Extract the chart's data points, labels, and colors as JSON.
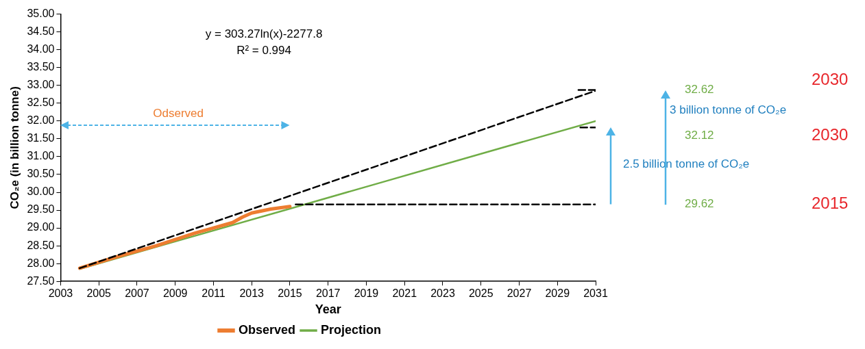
{
  "chart_data": {
    "type": "line",
    "xlabel": "Year",
    "ylabel": "CO₂e (in billion tonne)",
    "xlim": [
      2003,
      2031
    ],
    "xticks": [
      2003,
      2005,
      2007,
      2009,
      2011,
      2013,
      2015,
      2017,
      2019,
      2021,
      2023,
      2025,
      2027,
      2029,
      2031
    ],
    "ylim": [
      27.5,
      35
    ],
    "yticks": [
      {
        "value": 27.5,
        "label": "27.50"
      },
      {
        "value": 28,
        "label": "28.00"
      },
      {
        "value": 28.5,
        "label": "28.50"
      },
      {
        "value": 29,
        "label": "29.00"
      },
      {
        "value": 29.5,
        "label": "29.50"
      },
      {
        "value": 30,
        "label": "30.00"
      },
      {
        "value": 30.5,
        "label": "30.50"
      },
      {
        "value": 31,
        "label": "31.00"
      },
      {
        "value": 31.5,
        "label": "31.50"
      },
      {
        "value": 32,
        "label": "32.00"
      },
      {
        "value": 32.5,
        "label": "32.50"
      },
      {
        "value": 33,
        "label": "33.00"
      },
      {
        "value": 33.5,
        "label": "33.50"
      },
      {
        "value": 34,
        "label": "34.00"
      },
      {
        "value": 34.5,
        "label": "34.50"
      },
      {
        "value": 35,
        "label": "35.00"
      }
    ],
    "grid": false,
    "legend": "bottom",
    "series": [
      {
        "name": "Observed",
        "color": "#ed7d31",
        "x": [
          2004,
          2006,
          2008,
          2010,
          2011,
          2012,
          2012.5,
          2013,
          2014,
          2015
        ],
        "values": [
          27.87,
          28.2,
          28.5,
          28.85,
          29.0,
          29.15,
          29.3,
          29.42,
          29.53,
          29.6
        ]
      },
      {
        "name": "Projection",
        "color": "#70ad47",
        "x": [
          2004,
          2009,
          2015,
          2020,
          2025,
          2031
        ],
        "values": [
          27.85,
          28.62,
          29.54,
          30.31,
          31.08,
          32.0
        ]
      },
      {
        "color": "#000000",
        "line_style": "dashed",
        "x": [
          2004,
          2031
        ],
        "values": [
          27.87,
          32.85
        ]
      },
      {
        "color": "#000000",
        "line_style": "dashed",
        "x": [
          2015.3,
          2031
        ],
        "values": [
          29.66,
          29.66
        ]
      },
      {
        "color": "#000000",
        "line_style": "dashed",
        "x": [
          2030.2,
          2031
        ],
        "values": [
          31.82,
          31.82
        ]
      },
      {
        "color": "#000000",
        "line_style": "dashed",
        "x": [
          2030.1,
          2031
        ],
        "values": [
          32.87,
          32.87
        ]
      }
    ],
    "annotations": [
      "y = 303.27ln(x)-2277.8",
      "R² = 0.994",
      "Odserved",
      "32.62",
      "32.12",
      "29.62",
      "2030",
      "2030",
      "2015",
      "3 billion tonne of CO₂e",
      "2.5 billion tonne of CO₂e"
    ]
  }
}
